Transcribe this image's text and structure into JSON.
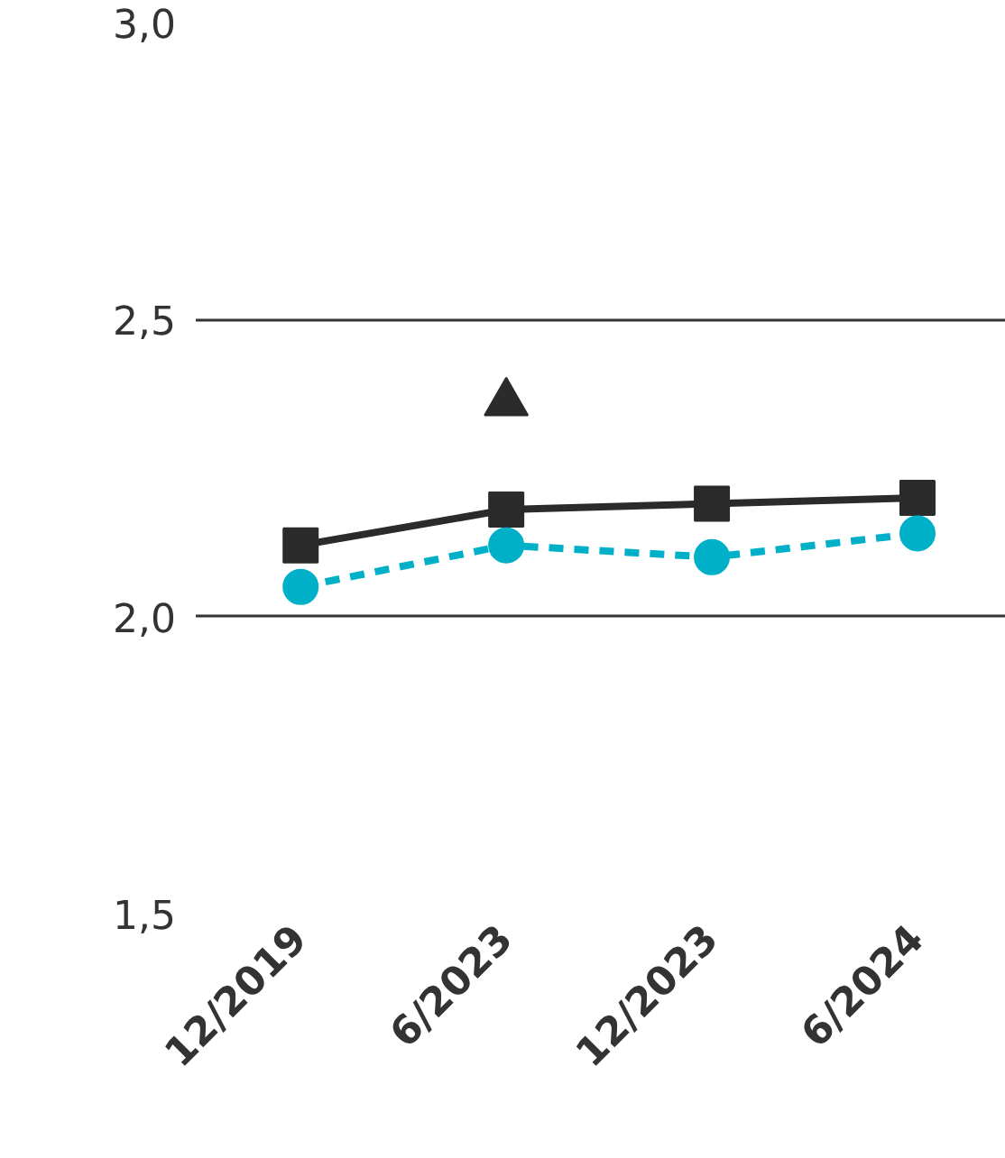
{
  "chart_data": {
    "type": "line",
    "categories": [
      "12/2019",
      "6/2023",
      "12/2023",
      "6/2024"
    ],
    "series": [
      {
        "color": "#2b2b2b",
        "values": [
          2.12,
          2.18,
          2.19,
          2.2
        ],
        "marker": "square",
        "line_style": "solid"
      },
      {
        "color": "#00b0c8",
        "values": [
          2.05,
          2.12,
          2.1,
          2.14
        ],
        "marker": "circle",
        "line_style": "dashed"
      },
      {
        "type": "scatter",
        "color": "#2b2b2b",
        "values": [
          null,
          2.36,
          null,
          null
        ],
        "marker": "triangle"
      }
    ],
    "ylim": [
      1.5,
      3.0
    ],
    "yticks": [
      {
        "value": 1.5,
        "label": "1,5"
      },
      {
        "value": 2.0,
        "label": "2,0"
      },
      {
        "value": 2.5,
        "label": "2,5"
      },
      {
        "value": 3.0,
        "label": "3,0"
      }
    ],
    "grid": "y"
  }
}
